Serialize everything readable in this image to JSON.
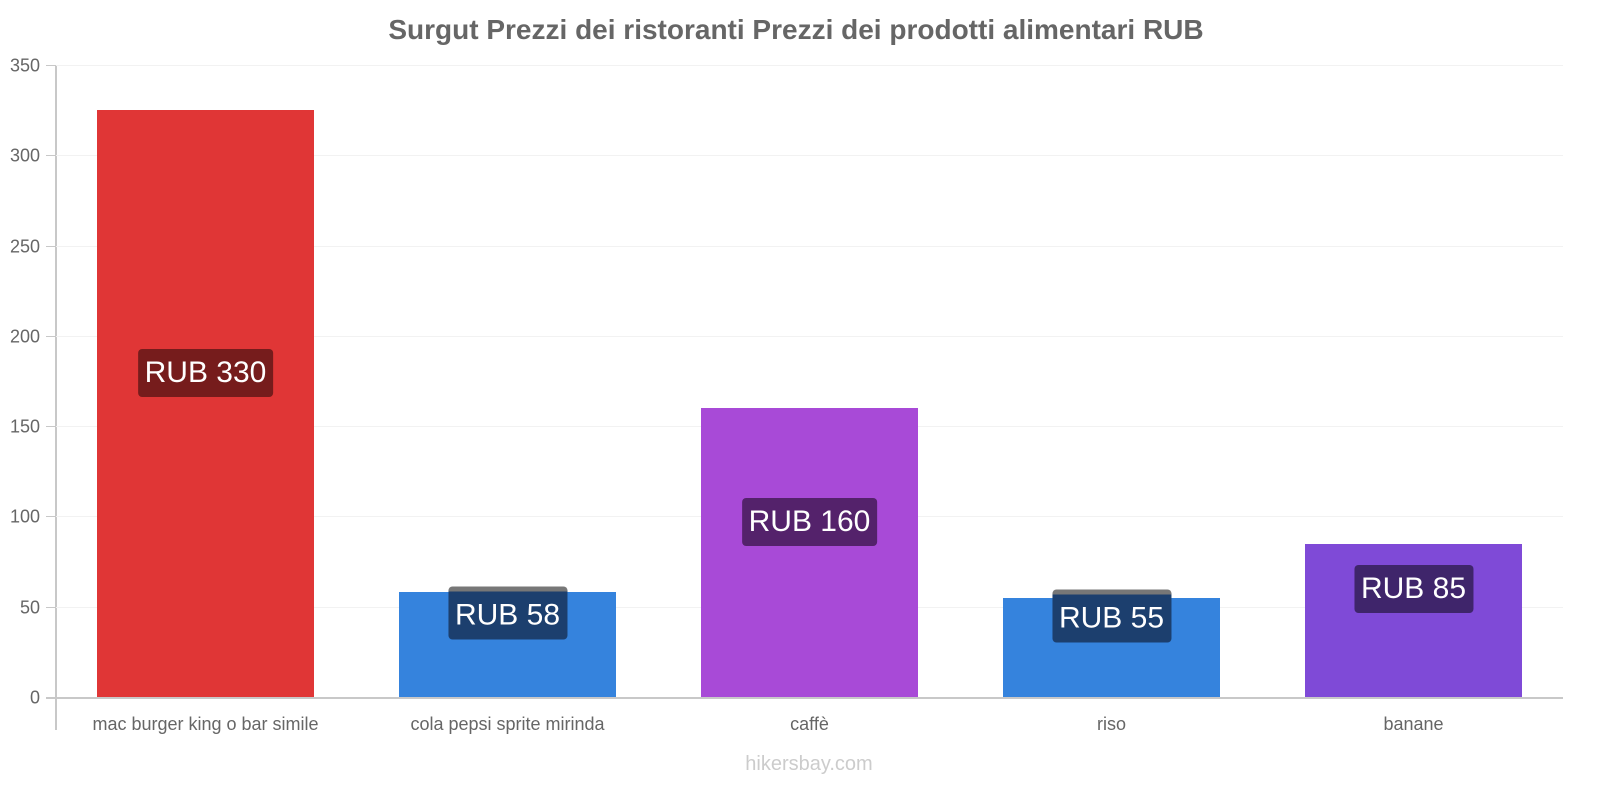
{
  "chart_data": {
    "type": "bar",
    "title": "Surgut Prezzi dei ristoranti Prezzi dei prodotti alimentari RUB",
    "xlabel": "",
    "ylabel": "",
    "ylim": [
      0,
      350
    ],
    "yticks": [
      "0",
      "50",
      "100",
      "150",
      "200",
      "250",
      "300",
      "350"
    ],
    "grid": true,
    "legend": null,
    "categories": [
      "mac burger king o bar simile",
      "cola pepsi sprite mirinda",
      "caffè",
      "riso",
      "banane"
    ],
    "values": [
      330,
      58,
      160,
      55,
      85
    ],
    "value_labels": [
      "RUB 330",
      "RUB 58",
      "RUB 160",
      "RUB 55",
      "RUB 85"
    ],
    "bar_colors": [
      "#e03636",
      "#3583dd",
      "#a84ad7",
      "#3583dd",
      "#7f4ad7"
    ],
    "label_bg_colors": [
      "#761c1c",
      "#1c3f6e",
      "#54226b",
      "#1c3f6e",
      "#3f256b"
    ]
  },
  "footer": {
    "source": "hikersbay.com"
  }
}
